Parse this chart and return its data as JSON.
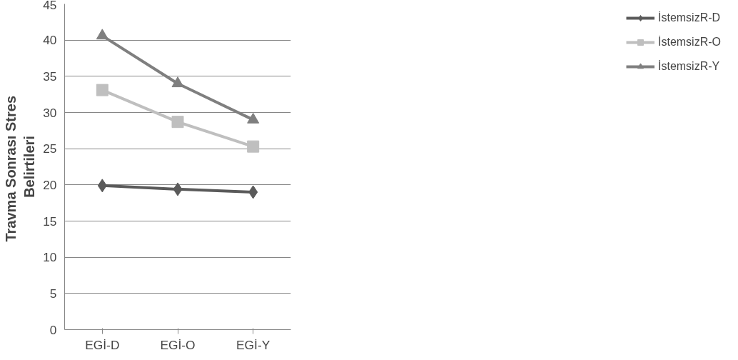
{
  "chart_data": {
    "type": "line",
    "ylabel": "Travma Sonrası  Stres Belirtileri",
    "categories": [
      "EGİ-D",
      "EGİ-O",
      "EGİ-Y"
    ],
    "series": [
      {
        "name": "İstemsizR-D",
        "color": "#5a5a5a",
        "marker": "diamond",
        "values": [
          19.9,
          19.4,
          19.0
        ]
      },
      {
        "name": "İstemsizR-O",
        "color": "#bfbfbf",
        "marker": "square",
        "values": [
          33.1,
          28.7,
          25.3
        ]
      },
      {
        "name": "İstemsizR-Y",
        "color": "#7f7f7f",
        "marker": "triangle",
        "values": [
          40.6,
          34.0,
          29.0
        ]
      }
    ],
    "ylim": [
      0,
      45
    ],
    "yticks": [
      0,
      5,
      10,
      15,
      20,
      25,
      30,
      35,
      40,
      45
    ],
    "grid": "y",
    "legend": "right",
    "line_style": "solid"
  }
}
